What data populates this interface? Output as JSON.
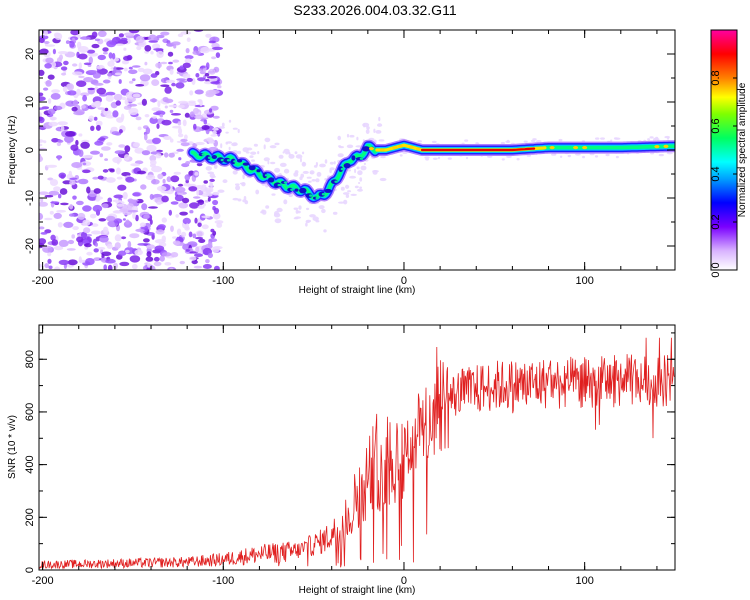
{
  "title": "S233.2026.004.03.32.G11",
  "chart_data": [
    {
      "type": "heatmap",
      "name": "spectrogram",
      "xlabel": "Height of straight line (km)",
      "ylabel": "Frequency (Hz)",
      "xlim": [
        -202,
        150
      ],
      "ylim": [
        -25,
        25
      ],
      "xticks": [
        -200,
        -100,
        0,
        100
      ],
      "yticks": [
        -20,
        -10,
        0,
        10,
        20
      ],
      "colorbar": {
        "label": "Normalized spectral amplitude",
        "range": [
          0,
          1
        ],
        "ticks": [
          "0.0",
          "0.2",
          "0.4",
          "0.6",
          "0.8"
        ]
      },
      "ridge": {
        "x": [
          -115,
          -105,
          -95,
          -85,
          -75,
          -65,
          -55,
          -48,
          -42,
          -36,
          -30,
          -25,
          -20,
          -15,
          -10,
          0,
          10,
          20,
          40,
          60,
          80,
          100,
          120,
          150
        ],
        "y": [
          -1,
          -1.5,
          -2,
          -4,
          -6,
          -7.5,
          -8.5,
          -10,
          -8.5,
          -5,
          -2,
          -1.5,
          0.5,
          0,
          0,
          1,
          0,
          0,
          0,
          0,
          0.5,
          0.5,
          0.5,
          0.8
        ]
      },
      "noise_region_x": [
        -202,
        -110
      ]
    },
    {
      "type": "line",
      "name": "snr",
      "xlabel": "Height of straight line (km)",
      "ylabel": "SNR (10 * v/v)",
      "xlim": [
        -202,
        150
      ],
      "ylim": [
        0,
        930
      ],
      "xticks": [
        -200,
        -100,
        0,
        100
      ],
      "yticks": [
        0,
        200,
        400,
        600,
        800
      ],
      "trend": {
        "x": [
          -202,
          -120,
          -100,
          -80,
          -60,
          -45,
          -35,
          -25,
          -18,
          -10,
          0,
          5,
          10,
          15,
          20,
          30,
          50,
          80,
          100,
          120,
          150
        ],
        "y": [
          20,
          30,
          40,
          60,
          70,
          110,
          160,
          290,
          380,
          420,
          440,
          500,
          540,
          580,
          630,
          670,
          700,
          710,
          710,
          720,
          720
        ]
      },
      "series_color": "#e02020"
    }
  ]
}
